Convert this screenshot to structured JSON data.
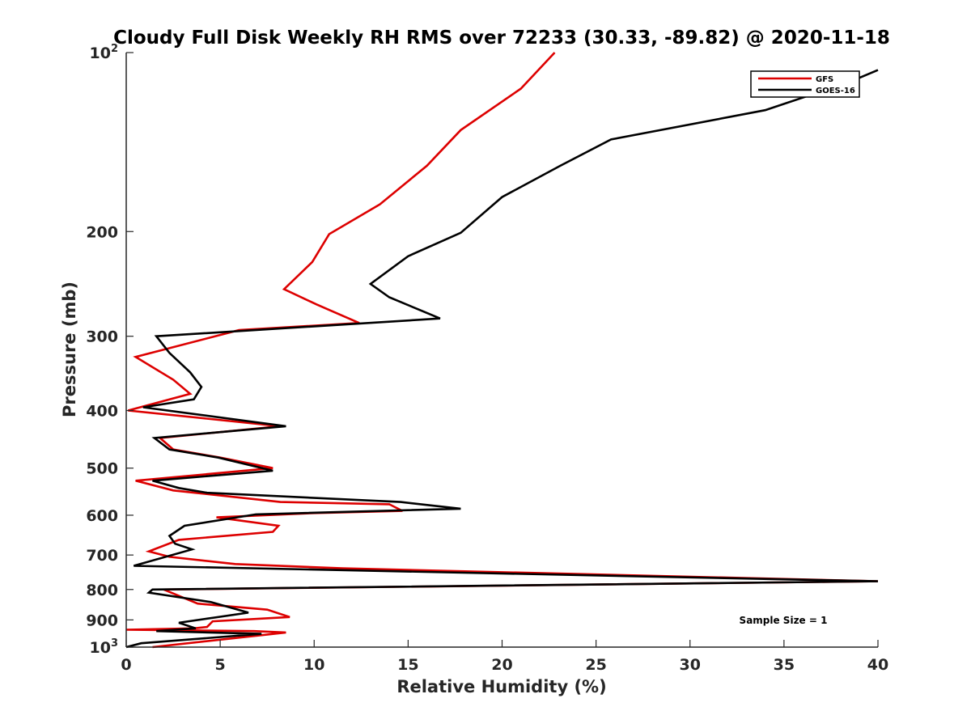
{
  "chart_data": {
    "type": "line",
    "title": "Cloudy Full Disk Weekly RH RMS over 72233 (30.33, -89.82) @ 2020-11-18",
    "xlabel": "Relative Humidity (%)",
    "ylabel": "Pressure (mb)",
    "xlim": [
      0,
      40
    ],
    "ylim": [
      100,
      1000
    ],
    "yscale": "log",
    "yreversed": true,
    "xticks": [
      0,
      5,
      10,
      15,
      20,
      25,
      30,
      35,
      40
    ],
    "yticks": [
      {
        "value": 100,
        "base": "10",
        "exp": "2"
      },
      {
        "value": 200,
        "label": "200"
      },
      {
        "value": 300,
        "label": "300"
      },
      {
        "value": 400,
        "label": "400"
      },
      {
        "value": 500,
        "label": "500"
      },
      {
        "value": 600,
        "label": "600"
      },
      {
        "value": 700,
        "label": "700"
      },
      {
        "value": 800,
        "label": "800"
      },
      {
        "value": 900,
        "label": "900"
      },
      {
        "value": 1000,
        "base": "10",
        "exp": "3"
      }
    ],
    "legend_position": "top-right",
    "annotation": "Sample Size = 1",
    "series": [
      {
        "name": "GFS",
        "color": "#dd0000",
        "x": [
          22.8,
          21.0,
          17.8,
          16.0,
          13.5,
          10.8,
          9.9,
          8.4,
          10.1,
          12.4,
          6.0,
          0.5,
          2.5,
          3.4,
          0.1,
          8.2,
          1.8,
          2.5,
          5.0,
          7.8,
          0.5,
          2.5,
          8.2,
          14.0,
          14.7,
          10.0,
          4.8,
          8.1,
          7.8,
          2.8,
          1.2,
          2.3,
          5.8,
          11.5,
          40.0,
          2.0,
          3.0,
          3.8,
          7.5,
          8.7,
          4.6,
          4.3,
          3.6,
          0.0,
          6.8,
          8.5,
          1.4
        ],
        "y": [
          100,
          115,
          135,
          155,
          180,
          202,
          225,
          250,
          265,
          285,
          293,
          325,
          355,
          375,
          400,
          425,
          445,
          465,
          480,
          500,
          525,
          545,
          570,
          575,
          590,
          595,
          605,
          625,
          640,
          660,
          690,
          705,
          725,
          737,
          775,
          800,
          825,
          845,
          865,
          890,
          905,
          925,
          930,
          935,
          940,
          945,
          1000
        ]
      },
      {
        "name": "GOES-16",
        "color": "#000000",
        "x": [
          40.0,
          38.5,
          34.0,
          25.8,
          23.1,
          20.0,
          17.8,
          15.0,
          13.0,
          14.0,
          16.7,
          1.6,
          2.3,
          3.4,
          4.0,
          3.6,
          0.9,
          8.5,
          1.5,
          2.3,
          4.9,
          7.8,
          1.4,
          2.8,
          4.3,
          14.6,
          17.8,
          6.9,
          3.1,
          2.3,
          2.6,
          3.5,
          0.4,
          40.0,
          1.4,
          1.2,
          4.5,
          6.5,
          2.8,
          3.7,
          1.6,
          7.2,
          0.8,
          0.0
        ],
        "y": [
          107,
          112,
          125,
          140,
          155,
          175,
          201,
          220,
          245,
          258,
          280,
          300,
          320,
          345,
          365,
          383,
          395,
          425,
          445,
          465,
          480,
          505,
          525,
          540,
          550,
          570,
          585,
          598,
          625,
          650,
          670,
          685,
          730,
          775,
          800,
          810,
          840,
          875,
          910,
          930,
          940,
          950,
          985,
          1000
        ]
      }
    ]
  }
}
